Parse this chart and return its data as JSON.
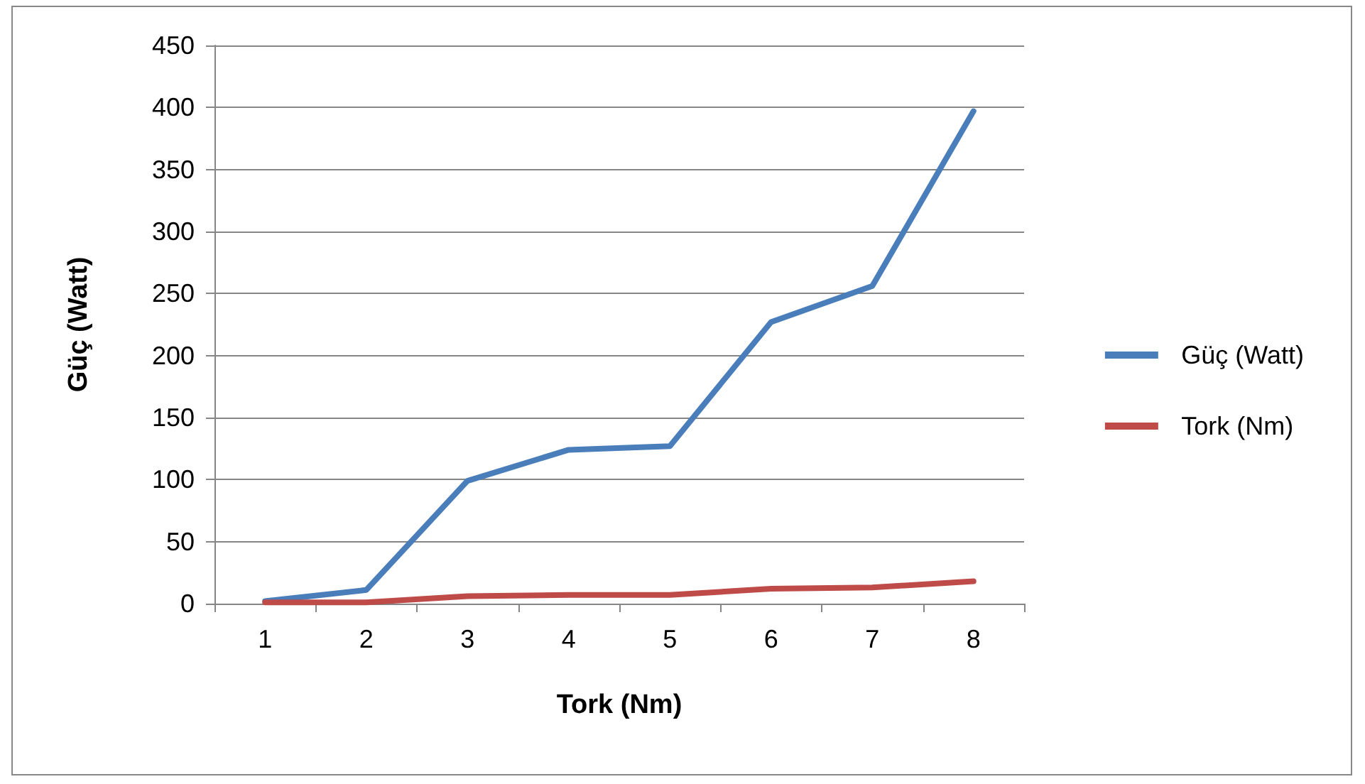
{
  "chart_data": {
    "type": "line",
    "xlabel": "Tork (Nm)",
    "ylabel": "Güç (Watt)",
    "categories": [
      "1",
      "2",
      "3",
      "4",
      "5",
      "6",
      "7",
      "8"
    ],
    "series": [
      {
        "name": "Güç (Watt)",
        "color": "#4a7ebb",
        "values": [
          2,
          11,
          99,
          124,
          127,
          227,
          256,
          397
        ]
      },
      {
        "name": "Tork (Nm)",
        "color": "#be4b48",
        "values": [
          1,
          1,
          6,
          7,
          7,
          12,
          13,
          18
        ]
      }
    ],
    "ylim": [
      0,
      450
    ],
    "yticks": [
      0,
      50,
      100,
      150,
      200,
      250,
      300,
      350,
      400,
      450
    ],
    "grid": "y",
    "legend": "right",
    "marker": "none",
    "line_style": "solid"
  }
}
